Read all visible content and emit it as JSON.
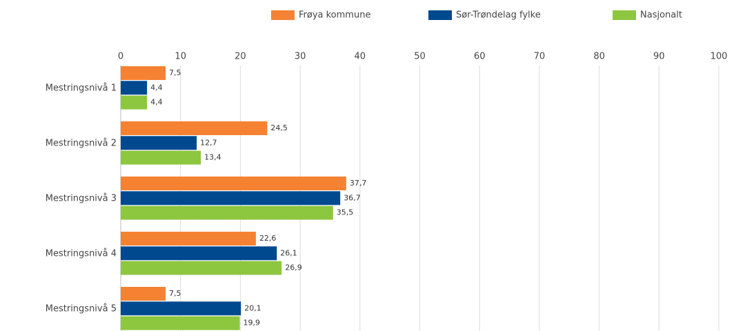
{
  "chart_data": {
    "type": "bar",
    "orientation": "horizontal",
    "categories": [
      "Mestringsnivå 1",
      "Mestringsnivå 2",
      "Mestringsnivå 3",
      "Mestringsnivå 4",
      "Mestringsnivå 5"
    ],
    "series": [
      {
        "name": "Frøya kommune",
        "color": "#f58233",
        "values": [
          7.5,
          24.5,
          37.7,
          22.6,
          7.5
        ],
        "value_labels": [
          "7,5",
          "24,5",
          "37,7",
          "22,6",
          "7,5"
        ]
      },
      {
        "name": "Sør-Trøndelag fylke",
        "color": "#00498f",
        "values": [
          4.4,
          12.7,
          36.7,
          26.1,
          20.1
        ],
        "value_labels": [
          "4,4",
          "12,7",
          "36,7",
          "26,1",
          "20,1"
        ]
      },
      {
        "name": "Nasjonalt",
        "color": "#8dc63f",
        "values": [
          4.4,
          13.4,
          35.5,
          26.9,
          19.9
        ],
        "value_labels": [
          "4,4",
          "13,4",
          "35,5",
          "26,9",
          "19,9"
        ]
      }
    ],
    "xlim": [
      0,
      100
    ],
    "xticks": [
      0,
      10,
      20,
      30,
      40,
      50,
      60,
      70,
      80,
      90,
      100
    ],
    "grid": true,
    "legend": "top"
  }
}
